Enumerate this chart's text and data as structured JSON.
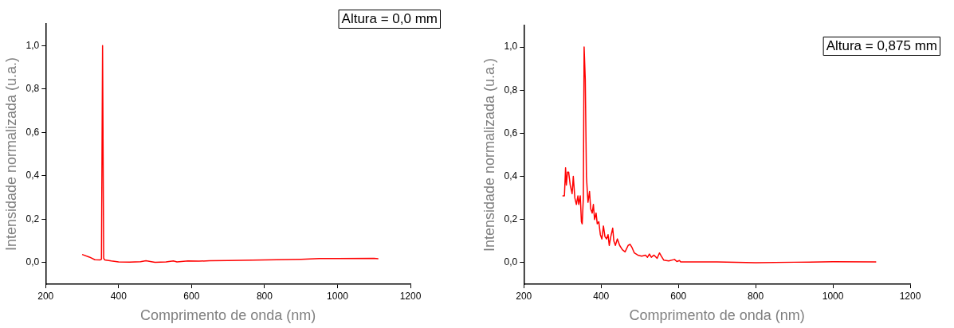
{
  "chart_data": [
    {
      "type": "line",
      "xlabel": "Comprimento de onda (nm)",
      "ylabel": "Intensidade normalizada (u.a.)",
      "annotations": [
        "Altura = 0,0 mm"
      ],
      "xlim": [
        200,
        1200
      ],
      "xticks": [
        200,
        400,
        600,
        800,
        1000,
        1200
      ],
      "ylim": [
        -0.1,
        1.1
      ],
      "yticks": [
        {
          "value": 0,
          "label": "0,0"
        },
        {
          "value": 0.2,
          "label": "0,2"
        },
        {
          "value": 0.4,
          "label": "0,4"
        },
        {
          "value": 0.6,
          "label": "0,6"
        },
        {
          "value": 0.8,
          "label": "0,8"
        },
        {
          "value": 1.0,
          "label": "1,0"
        }
      ],
      "grid": false,
      "legend": false,
      "marker": "none",
      "line_style": "solid",
      "series": [
        {
          "color": "#ff0000",
          "x": [
            300,
            320,
            335,
            350,
            353,
            356,
            359,
            362,
            380,
            400,
            430,
            460,
            475,
            490,
            500,
            530,
            550,
            560,
            590,
            620,
            650,
            700,
            800,
            900,
            950,
            1000,
            1100,
            1112
          ],
          "values": [
            0.037,
            0.025,
            0.013,
            0.012,
            0.015,
            1.0,
            0.02,
            0.012,
            0.007,
            0.003,
            0.002,
            0.004,
            0.008,
            0.004,
            0.001,
            0.003,
            0.007,
            0.003,
            0.007,
            0.006,
            0.008,
            0.009,
            0.012,
            0.015,
            0.018,
            0.018,
            0.019,
            0.017
          ]
        }
      ]
    },
    {
      "type": "line",
      "xlabel": "Comprimento de onda (nm)",
      "ylabel": "Intensidade normalizada (u.a.)",
      "annotations": [
        "Altura = 0,875 mm"
      ],
      "xlim": [
        200,
        1200
      ],
      "xticks": [
        200,
        400,
        600,
        800,
        1000,
        1200
      ],
      "ylim": [
        -0.1,
        1.1
      ],
      "yticks": [
        {
          "value": 0,
          "label": "0,0"
        },
        {
          "value": 0.2,
          "label": "0,2"
        },
        {
          "value": 0.4,
          "label": "0,4"
        },
        {
          "value": 0.6,
          "label": "0,6"
        },
        {
          "value": 0.8,
          "label": "0,8"
        },
        {
          "value": 1.0,
          "label": "1,0"
        }
      ],
      "grid": false,
      "legend": false,
      "marker": "none",
      "line_style": "solid",
      "series": [
        {
          "color": "#ff0000",
          "x": [
            300,
            305,
            308,
            310,
            313,
            316,
            320,
            325,
            328,
            332,
            336,
            340,
            342,
            346,
            349,
            351,
            354,
            356,
            359,
            362,
            366,
            370,
            373,
            377,
            380,
            383,
            387,
            390,
            394,
            398,
            402,
            406,
            410,
            414,
            418,
            421,
            425,
            430,
            433,
            437,
            442,
            448,
            455,
            462,
            470,
            475,
            480,
            486,
            495,
            505,
            515,
            520,
            525,
            530,
            537,
            545,
            551,
            556,
            562,
            575,
            590,
            596,
            603,
            606,
            650,
            700,
            800,
            900,
            1000,
            1112
          ],
          "values": [
            0.31,
            0.31,
            0.44,
            0.36,
            0.42,
            0.42,
            0.36,
            0.32,
            0.4,
            0.3,
            0.27,
            0.31,
            0.27,
            0.31,
            0.19,
            0.18,
            0.3,
            1.0,
            0.85,
            0.4,
            0.28,
            0.33,
            0.25,
            0.23,
            0.27,
            0.2,
            0.23,
            0.18,
            0.19,
            0.13,
            0.11,
            0.17,
            0.12,
            0.11,
            0.13,
            0.08,
            0.12,
            0.16,
            0.1,
            0.08,
            0.11,
            0.08,
            0.06,
            0.05,
            0.08,
            0.085,
            0.07,
            0.045,
            0.035,
            0.03,
            0.035,
            0.025,
            0.04,
            0.025,
            0.035,
            0.02,
            0.045,
            0.03,
            0.012,
            0.008,
            0.015,
            0.005,
            0.01,
            0.003,
            0.003,
            0.003,
            0.0,
            0.002,
            0.004,
            0.003
          ]
        }
      ]
    }
  ]
}
